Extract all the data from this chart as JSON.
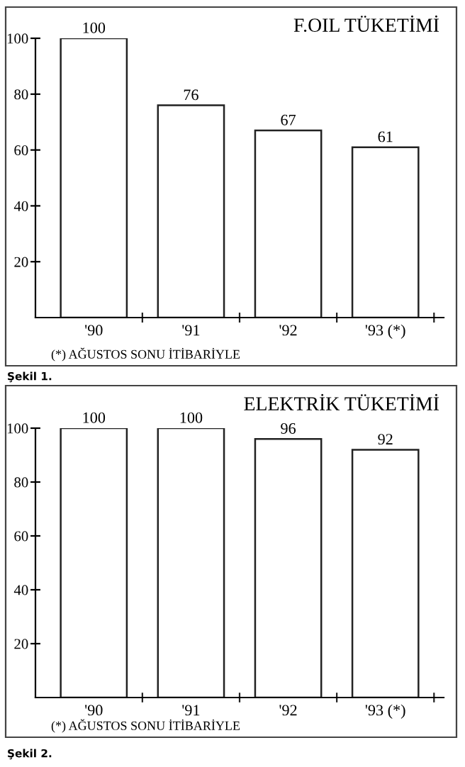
{
  "chart_data": [
    {
      "type": "bar",
      "title": "F.OIL TÜKETİMİ",
      "categories": [
        "'90",
        "'91",
        "'92",
        "'93 (*)"
      ],
      "values": [
        100,
        76,
        67,
        61
      ],
      "color": "#ffffff",
      "ylim": [
        0,
        100
      ],
      "yticks": [
        20,
        40,
        60,
        80,
        100
      ],
      "data_labels": true,
      "grid": false,
      "annotations": [
        "(*) AĞUSTOS SONU İTİBARİYLE",
        "Şekil 1."
      ]
    },
    {
      "type": "bar",
      "title": "ELEKTRİK TÜKETİMİ",
      "categories": [
        "'90",
        "'91",
        "'92",
        "'93 (*)"
      ],
      "values": [
        100,
        100,
        96,
        92
      ],
      "color": "#ffffff",
      "ylim": [
        0,
        100
      ],
      "yticks": [
        20,
        40,
        60,
        80,
        100
      ],
      "data_labels": true,
      "grid": false,
      "annotations": [
        "(*) AĞUSTOS SONU İTİBARİYLE",
        "Şekil 2."
      ]
    }
  ]
}
